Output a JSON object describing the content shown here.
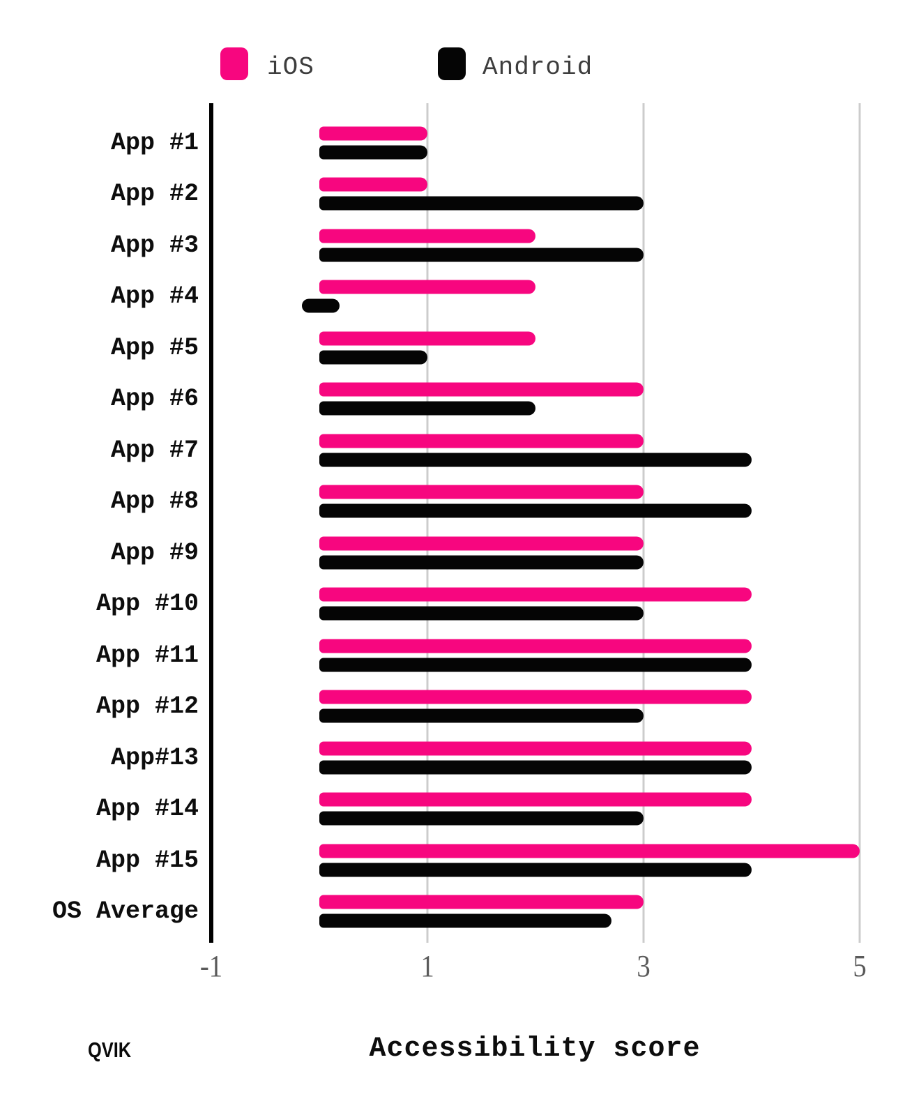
{
  "branding": {
    "logo_text": "QVIK"
  },
  "legend": {
    "ios_label": "iOS",
    "android_label": "Android"
  },
  "colors": {
    "ios_pink": "#F7067F",
    "android_black": "#050505",
    "gridline_gray": "#cccccc",
    "axis_black": "#000000",
    "tick_text_gray": "#5a5a5a"
  },
  "chart_data": {
    "type": "bar",
    "orientation": "horizontal",
    "title": "",
    "xlabel": "Accessibility score",
    "ylabel": "",
    "categories": [
      "App #1",
      "App #2",
      "App #3",
      "App #4",
      "App #5",
      "App #6",
      "App #7",
      "App #8",
      "App #9",
      "App #10",
      "App #11",
      "App #12",
      "App#13",
      "App #14",
      "App #15",
      "OS Average"
    ],
    "series": [
      {
        "name": "iOS",
        "color": "#F7067F",
        "values": [
          1,
          1,
          2,
          2,
          2,
          3,
          3,
          3,
          3,
          4,
          4,
          4,
          4,
          4,
          5,
          3
        ]
      },
      {
        "name": "Android",
        "color": "#050505",
        "values": [
          1,
          3,
          3,
          0,
          1,
          2,
          4,
          4,
          3,
          3,
          4,
          3,
          4,
          3,
          4,
          2.7
        ]
      }
    ],
    "x_ticks": [
      -1,
      1,
      3,
      5
    ],
    "xlim": [
      -1,
      5.42
    ],
    "grid": "vertical gridlines at x ticks, leftmost tick drawn as solid black axis line",
    "legend_position": "top"
  }
}
